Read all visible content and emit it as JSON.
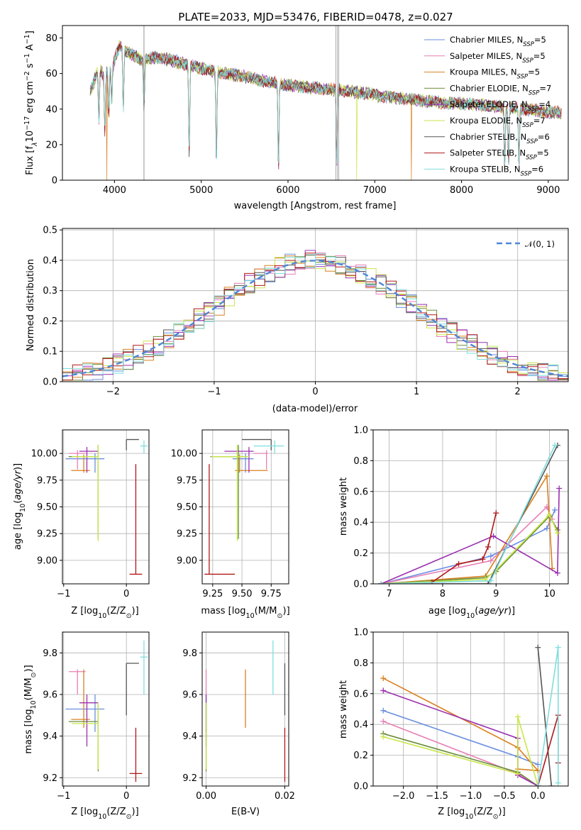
{
  "figure": {
    "title": "PLATE=2033, MJD=53476, FIBERID=0478, z=0.027"
  },
  "models": [
    {
      "name": "Chabrier MILES",
      "label": "Chabrier MILES, N",
      "nssp": "=5",
      "color": "#6a8ee0"
    },
    {
      "name": "Salpeter MILES",
      "label": "Salpeter MILES, N",
      "nssp": "=5",
      "color": "#e87fb5"
    },
    {
      "name": "Kroupa MILES",
      "label": "Kroupa MILES, N",
      "nssp": "=5",
      "color": "#d98020"
    },
    {
      "name": "Chabrier ELODIE",
      "label": "Chabrier ELODIE, N",
      "nssp": "=7",
      "color": "#6b8e3b"
    },
    {
      "name": "Salpeter ELODIE",
      "label": "Salpeter ELODIE, N",
      "nssp": "=4",
      "color": "#9b30b0"
    },
    {
      "name": "Kroupa ELODIE",
      "label": "Kroupa ELODIE, N",
      "nssp": "=7",
      "color": "#c8e64a"
    },
    {
      "name": "Chabrier STELIB",
      "label": "Chabrier STELIB, N",
      "nssp": "=6",
      "color": "#555555"
    },
    {
      "name": "Salpeter STELIB",
      "label": "Salpeter STELIB, N",
      "nssp": "=5",
      "color": "#b01818"
    },
    {
      "name": "Kroupa STELIB",
      "label": "Kroupa STELIB, N",
      "nssp": "=6",
      "color": "#7fdedd"
    }
  ],
  "chart_data": [
    {
      "id": "spectrum",
      "type": "line",
      "xlabel": "wavelength [Angstrom, rest frame]",
      "ylabel": "Flux [f",
      "ylabel_unit": "10",
      "ylabel_exp": "−17",
      "ylabel_tail": " erg cm",
      "ylabel_exp2": "−2",
      "ylabel_tail2": " s",
      "ylabel_exp3": "−1",
      "ylabel_tail3": " A",
      "ylabel_exp4": "−1",
      "ylabel_end": "]",
      "xlim": [
        3400,
        9230
      ],
      "ylim": [
        0,
        87
      ],
      "xticks": [
        4000,
        5000,
        6000,
        7000,
        8000,
        9000
      ],
      "yticks": [
        0,
        20,
        40,
        60,
        80
      ],
      "continuum": [
        [
          3720,
          50
        ],
        [
          3760,
          55
        ],
        [
          3820,
          63
        ],
        [
          3880,
          58
        ],
        [
          3930,
          62
        ],
        [
          3990,
          66
        ],
        [
          4060,
          76
        ],
        [
          4150,
          72
        ],
        [
          4300,
          68
        ],
        [
          4500,
          69
        ],
        [
          4700,
          67
        ],
        [
          4900,
          64
        ],
        [
          5100,
          62
        ],
        [
          5300,
          60
        ],
        [
          5500,
          58
        ],
        [
          5700,
          56
        ],
        [
          5900,
          54
        ],
        [
          6100,
          53
        ],
        [
          6300,
          52
        ],
        [
          6500,
          51
        ],
        [
          6700,
          50
        ],
        [
          6900,
          49
        ],
        [
          7100,
          47
        ],
        [
          7300,
          46
        ],
        [
          7500,
          45
        ],
        [
          7700,
          44
        ],
        [
          7900,
          43
        ],
        [
          8100,
          43
        ],
        [
          8300,
          42
        ],
        [
          8500,
          41
        ],
        [
          8700,
          40
        ],
        [
          8900,
          39
        ],
        [
          9100,
          38
        ]
      ],
      "absorption": [
        [
          3820,
          30
        ],
        [
          3890,
          32
        ],
        [
          3934,
          26
        ],
        [
          3968,
          22
        ],
        [
          4102,
          35
        ],
        [
          4340,
          28
        ],
        [
          4861,
          50
        ],
        [
          5175,
          52
        ],
        [
          5890,
          48
        ],
        [
          6563,
          40
        ],
        [
          8498,
          34
        ],
        [
          8542,
          30
        ],
        [
          8662,
          32
        ]
      ],
      "drops": [
        {
          "series": "Kroupa MILES",
          "x": 3910
        },
        {
          "series": "Kroupa ELODIE",
          "x": 6790
        },
        {
          "series": "Kroupa MILES",
          "x": 7420
        }
      ]
    },
    {
      "id": "residuals",
      "type": "line",
      "xlabel": "(data-model)/error",
      "ylabel": "Normed distribution",
      "legend": "𝒩(0, 1)",
      "xlim": [
        -2.5,
        2.5
      ],
      "ylim": [
        0,
        0.505
      ],
      "xticks": [
        -2,
        -1,
        0,
        1,
        2
      ],
      "yticks": [
        0.0,
        0.1,
        0.2,
        0.3,
        0.4,
        0.5
      ]
    },
    {
      "id": "age_vs_Z",
      "type": "scatter",
      "xlabel": "Z [log",
      "xlabel_sub": "10",
      "xlabel_tail": "(Z/Z",
      "xlabel_tail_sub": "⊙",
      "xlabel_end": ")]",
      "ylabel": "age  [log",
      "ylabel_sub": "10",
      "ylabel_tail": "(age/yr)]",
      "xlim": [
        -1.02,
        0.36
      ],
      "ylim": [
        8.78,
        10.22
      ],
      "xticks": [
        -1,
        0
      ],
      "yticks": [
        9.0,
        9.25,
        9.5,
        9.75,
        10.0
      ]
    },
    {
      "id": "age_vs_mass",
      "type": "scatter",
      "xlabel": "mass [log",
      "xlabel_sub": "10",
      "xlabel_tail": "(M/M",
      "xlabel_tail_sub": "⊙",
      "xlabel_end": ")]",
      "xlim": [
        9.16,
        9.9
      ],
      "ylim": [
        8.78,
        10.22
      ],
      "xticks": [
        9.25,
        9.5,
        9.75
      ],
      "yticks": [
        9.0,
        9.25,
        9.5,
        9.75,
        10.0
      ]
    },
    {
      "id": "weight_vs_age",
      "type": "line",
      "xlabel": "age  [log",
      "xlabel_sub": "10",
      "xlabel_tail": "(age/yr)]",
      "ylabel": "mass weight",
      "xlim": [
        6.7,
        10.35
      ],
      "ylim": [
        0,
        1
      ],
      "xticks": [
        7,
        8,
        9,
        10
      ],
      "yticks": [
        0.0,
        0.2,
        0.4,
        0.6,
        0.8,
        1.0
      ]
    },
    {
      "id": "mass_vs_Z",
      "type": "scatter",
      "xlabel": "Z [log",
      "xlabel_sub": "10",
      "xlabel_tail": "(Z/Z",
      "xlabel_tail_sub": "⊙",
      "xlabel_end": ")]",
      "ylabel": "mass [log",
      "ylabel_sub": "10",
      "ylabel_tail": "(M/M",
      "ylabel_tail_sub": "⊙",
      "ylabel_end": ")]",
      "xlim": [
        -1.02,
        0.36
      ],
      "ylim": [
        9.16,
        9.9
      ],
      "xticks": [
        -1,
        0
      ],
      "yticks": [
        9.2,
        9.4,
        9.6,
        9.8
      ]
    },
    {
      "id": "mass_vs_ebv",
      "type": "scatter",
      "xlabel": "E(B-V)",
      "xlim": [
        -0.001,
        0.021
      ],
      "ylim": [
        9.16,
        9.9
      ],
      "xticks": [
        0.0,
        0.02
      ],
      "xticklabels": [
        "0.00",
        "0.02"
      ],
      "yticks": [
        9.2,
        9.4,
        9.6,
        9.8
      ]
    },
    {
      "id": "weight_vs_Z",
      "type": "line",
      "xlabel": "Z [log",
      "xlabel_sub": "10",
      "xlabel_tail": "(Z/Z",
      "xlabel_tail_sub": "⊙",
      "xlabel_end": ")]",
      "ylabel": "mass weight",
      "xlim": [
        -2.45,
        0.45
      ],
      "ylim": [
        0,
        1
      ],
      "xticks": [
        -2.0,
        -1.5,
        -1.0,
        -0.5,
        0.0
      ],
      "yticks": [
        0.0,
        0.2,
        0.4,
        0.6,
        0.8,
        1.0
      ]
    }
  ],
  "fits": [
    {
      "series": "Chabrier MILES",
      "Z": -0.5,
      "Zlo": -0.97,
      "Zhi": -0.35,
      "age": 9.95,
      "agelo": 9.82,
      "agehi": 10.0,
      "mass": 9.53,
      "masslo": 9.42,
      "masshi": 9.6,
      "ebv": 0.0
    },
    {
      "series": "Salpeter MILES",
      "Z": -0.78,
      "Zlo": -0.92,
      "Zhi": -0.65,
      "age": 10.0,
      "agelo": 9.85,
      "agehi": 10.03,
      "mass": 9.71,
      "masslo": 9.6,
      "masshi": 9.72,
      "ebv": 0.0
    },
    {
      "series": "Kroupa MILES",
      "Z": -0.68,
      "Zlo": -0.88,
      "Zhi": -0.58,
      "age": 9.84,
      "agelo": 9.82,
      "agehi": 9.99,
      "mass": 9.48,
      "masslo": 9.44,
      "masshi": 9.72,
      "ebv": 0.01
    },
    {
      "series": "Chabrier ELODIE",
      "Z": -0.45,
      "Zlo": -0.92,
      "Zhi": -0.45,
      "age": 9.97,
      "agelo": 9.2,
      "agehi": 10.08,
      "mass": 9.47,
      "masslo": 9.23,
      "masshi": 9.55,
      "ebv": 0.0
    },
    {
      "series": "Salpeter ELODIE",
      "Z": -0.63,
      "Zlo": -0.75,
      "Zhi": -0.45,
      "age": 10.02,
      "agelo": 9.82,
      "agehi": 10.06,
      "mass": 9.56,
      "masslo": 9.35,
      "masshi": 9.6,
      "ebv": 0.0
    },
    {
      "series": "Kroupa ELODIE",
      "Z": -0.45,
      "Zlo": -0.87,
      "Zhi": -0.45,
      "age": 9.97,
      "agelo": 9.18,
      "agehi": 10.08,
      "mass": 9.46,
      "masslo": 9.24,
      "masshi": 9.56,
      "ebv": 0.0
    },
    {
      "series": "Chabrier STELIB",
      "Z": 0.0,
      "Zlo": 0.0,
      "Zhi": 0.2,
      "age": 10.13,
      "agelo": 10.03,
      "agehi": 10.13,
      "mass": 9.75,
      "masslo": 9.5,
      "masshi": 9.75,
      "ebv": 0.02
    },
    {
      "series": "Salpeter STELIB",
      "Z": 0.15,
      "Zlo": 0.05,
      "Zhi": 0.25,
      "age": 8.87,
      "agelo": 8.87,
      "agehi": 9.9,
      "mass": 9.22,
      "masslo": 9.18,
      "masshi": 9.44,
      "ebv": 0.02
    },
    {
      "series": "Kroupa STELIB",
      "Z": 0.28,
      "Zlo": 0.22,
      "Zhi": 0.34,
      "age": 10.07,
      "agelo": 10.0,
      "agehi": 10.12,
      "mass": 9.78,
      "masslo": 9.6,
      "masshi": 9.86,
      "ebv": 0.017
    }
  ],
  "weights_age": [
    {
      "series": "Chabrier MILES",
      "points": [
        [
          6.85,
          0.0
        ],
        [
          8.9,
          0.18
        ],
        [
          9.95,
          0.36
        ],
        [
          10.1,
          0.48
        ]
      ]
    },
    {
      "series": "Salpeter MILES",
      "points": [
        [
          6.85,
          0.0
        ],
        [
          8.9,
          0.15
        ],
        [
          9.95,
          0.5
        ],
        [
          10.05,
          0.42
        ]
      ]
    },
    {
      "series": "Kroupa MILES",
      "points": [
        [
          6.85,
          0.0
        ],
        [
          8.8,
          0.05
        ],
        [
          9.95,
          0.7
        ],
        [
          10.05,
          0.1
        ]
      ]
    },
    {
      "series": "Chabrier ELODIE",
      "points": [
        [
          6.85,
          0.0
        ],
        [
          8.8,
          0.04
        ],
        [
          9.0,
          0.08
        ],
        [
          10.0,
          0.44
        ],
        [
          10.15,
          0.35
        ]
      ]
    },
    {
      "series": "Salpeter ELODIE",
      "points": [
        [
          6.85,
          0.0
        ],
        [
          8.95,
          0.31
        ],
        [
          10.15,
          0.07
        ],
        [
          10.18,
          0.62
        ]
      ]
    },
    {
      "series": "Kroupa ELODIE",
      "points": [
        [
          6.85,
          0.0
        ],
        [
          8.8,
          0.03
        ],
        [
          9.0,
          0.09
        ],
        [
          10.0,
          0.45
        ],
        [
          10.15,
          0.33
        ]
      ]
    },
    {
      "series": "Chabrier STELIB",
      "points": [
        [
          6.85,
          0.0
        ],
        [
          8.85,
          0.0
        ],
        [
          10.15,
          0.9
        ]
      ]
    },
    {
      "series": "Salpeter STELIB",
      "points": [
        [
          7.8,
          0.01
        ],
        [
          8.3,
          0.13
        ],
        [
          8.75,
          0.16
        ],
        [
          8.85,
          0.24
        ],
        [
          9.0,
          0.46
        ]
      ]
    },
    {
      "series": "Kroupa STELIB",
      "points": [
        [
          6.85,
          0.0
        ],
        [
          8.9,
          0.02
        ],
        [
          10.1,
          0.9
        ]
      ]
    }
  ],
  "weights_Z": [
    {
      "series": "Chabrier MILES",
      "points": [
        [
          -2.3,
          0.49
        ],
        [
          -0.3,
          0.19
        ],
        [
          0.0,
          0.14
        ]
      ]
    },
    {
      "series": "Salpeter MILES",
      "points": [
        [
          -2.3,
          0.42
        ],
        [
          -0.3,
          0.08
        ],
        [
          0.0,
          0.0
        ]
      ]
    },
    {
      "series": "Kroupa MILES",
      "points": [
        [
          -2.3,
          0.7
        ],
        [
          -0.3,
          0.25
        ],
        [
          0.0,
          0.1
        ],
        [
          -0.3,
          0.11
        ]
      ]
    },
    {
      "series": "Chabrier ELODIE",
      "points": [
        [
          -2.3,
          0.34
        ],
        [
          -0.3,
          0.09
        ],
        [
          0.0,
          0.0
        ]
      ]
    },
    {
      "series": "Salpeter ELODIE",
      "points": [
        [
          -2.3,
          0.62
        ],
        [
          -0.3,
          0.31
        ],
        [
          -0.3,
          0.07
        ],
        [
          0.0,
          0.0
        ]
      ]
    },
    {
      "series": "Kroupa ELODIE",
      "points": [
        [
          -2.3,
          0.32
        ],
        [
          -0.3,
          0.08
        ],
        [
          -0.3,
          0.45
        ],
        [
          0.0,
          0.0
        ]
      ]
    },
    {
      "series": "Chabrier STELIB",
      "points": [
        [
          0.0,
          0.9
        ],
        [
          0.2,
          0.0
        ]
      ]
    },
    {
      "series": "Salpeter STELIB",
      "points": [
        [
          0.0,
          0.0
        ],
        [
          0.3,
          0.46
        ],
        [
          0.3,
          0.15
        ]
      ]
    },
    {
      "series": "Kroupa STELIB",
      "points": [
        [
          0.0,
          0.0
        ],
        [
          0.3,
          0.9
        ],
        [
          0.3,
          0.02
        ]
      ]
    }
  ]
}
